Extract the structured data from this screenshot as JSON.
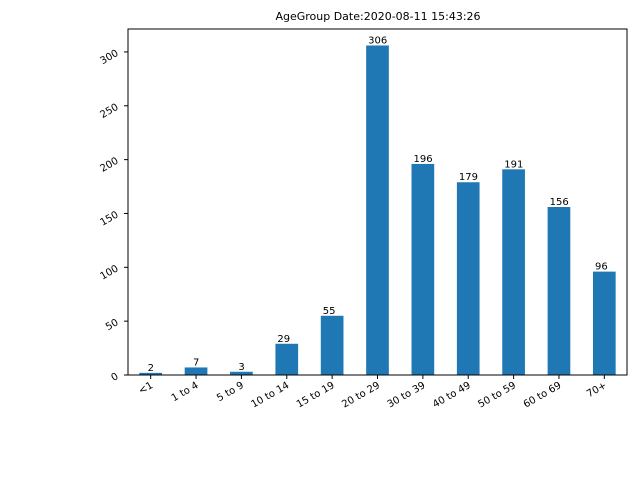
{
  "chart_data": {
    "type": "bar",
    "title": "AgeGroup  Date:2020-08-11 15:43:26",
    "xlabel": "",
    "ylabel": "",
    "categories": [
      "<1",
      "1 to 4",
      "5 to 9",
      "10 to 14",
      "15 to 19",
      "20 to 29",
      "30 to 39",
      "40 to 49",
      "50 to 59",
      "60 to 69",
      "70+"
    ],
    "values": [
      2,
      7,
      3,
      29,
      55,
      306,
      196,
      179,
      191,
      156,
      96
    ],
    "ylim": [
      0,
      321.3
    ],
    "yticks": [
      0,
      50,
      100,
      150,
      200,
      250,
      300
    ],
    "bar_color": "#1f77b4",
    "grid": false,
    "legend": "none"
  }
}
